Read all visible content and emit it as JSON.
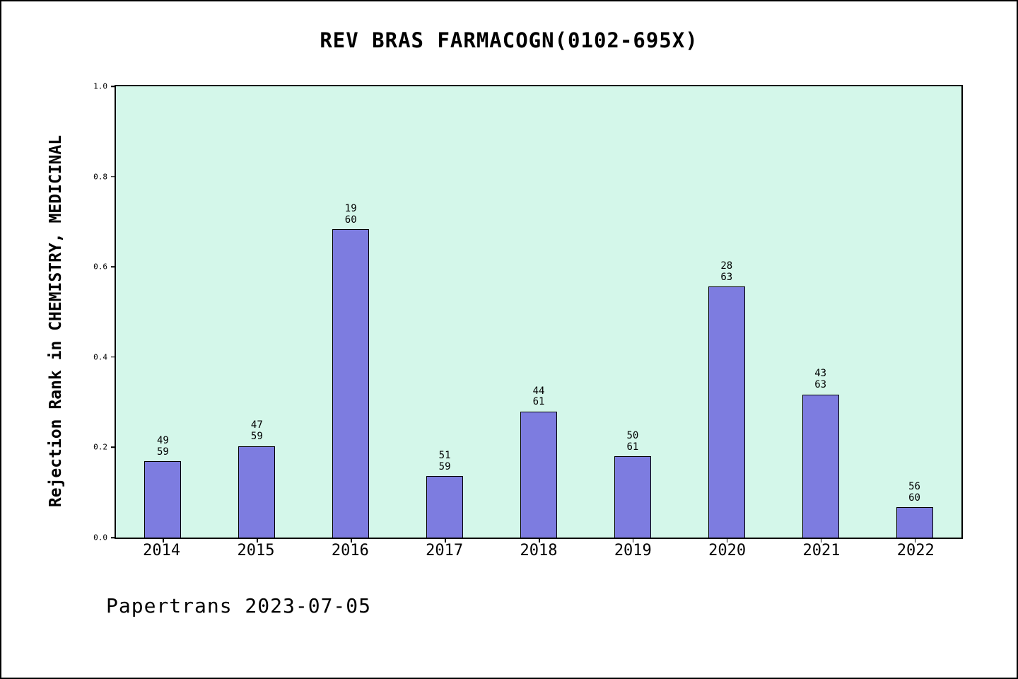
{
  "chart_data": {
    "type": "bar",
    "title": "REV BRAS FARMACOGN(0102-695X)",
    "ylabel": "Rejection Rank in CHEMISTRY, MEDICINAL",
    "categories": [
      "2014",
      "2015",
      "2016",
      "2017",
      "2018",
      "2019",
      "2020",
      "2021",
      "2022"
    ],
    "values": [
      0.169,
      0.203,
      0.683,
      0.136,
      0.279,
      0.18,
      0.556,
      0.317,
      0.067
    ],
    "bar_labels": [
      [
        "49",
        "59"
      ],
      [
        "47",
        "59"
      ],
      [
        "19",
        "60"
      ],
      [
        "51",
        "59"
      ],
      [
        "44",
        "61"
      ],
      [
        "50",
        "61"
      ],
      [
        "28",
        "63"
      ],
      [
        "43",
        "63"
      ],
      [
        "56",
        "60"
      ]
    ],
    "ylim": [
      0,
      1
    ],
    "yticks": [
      "0.0",
      "0.2",
      "0.4",
      "0.6",
      "0.8",
      "1.0"
    ],
    "legend": "none",
    "grid": false,
    "bar_color": "#7d7ce0",
    "plot_bg": "#d4f7ea",
    "footer": "Papertrans 2023-07-05"
  }
}
